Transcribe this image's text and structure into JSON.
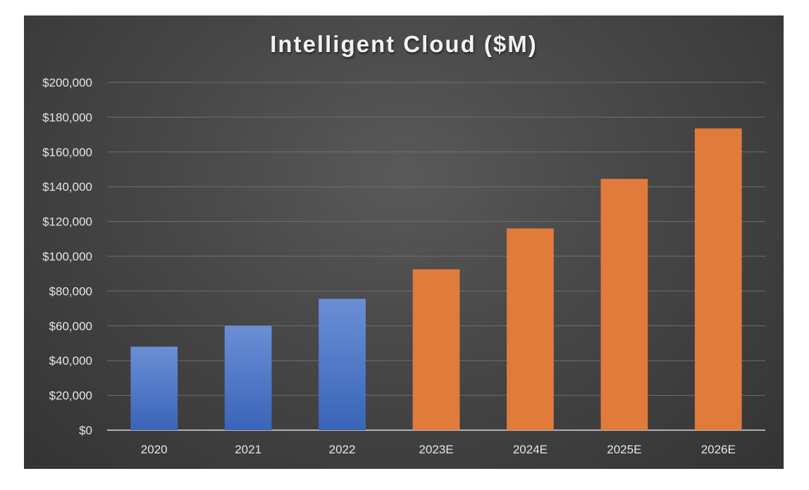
{
  "chart_data": {
    "type": "bar",
    "title": "Intelligent Cloud ($M)",
    "xlabel": "",
    "ylabel": "",
    "categories": [
      "2020",
      "2021",
      "2022",
      "2023E",
      "2024E",
      "2025E",
      "2026E"
    ],
    "values": [
      48000,
      60000,
      75500,
      92500,
      116000,
      144500,
      173500
    ],
    "kind": [
      "actual",
      "actual",
      "actual",
      "estimate",
      "estimate",
      "estimate",
      "estimate"
    ],
    "ylim": [
      0,
      200000
    ],
    "yticks": [
      0,
      20000,
      40000,
      60000,
      80000,
      100000,
      120000,
      140000,
      160000,
      180000,
      200000
    ],
    "ytick_labels": [
      "$0",
      "$20,000",
      "$40,000",
      "$60,000",
      "$80,000",
      "$100,000",
      "$120,000",
      "$140,000",
      "$160,000",
      "$180,000",
      "$200,000"
    ],
    "grid": true,
    "legend": "none"
  },
  "colors": {
    "actual": "#4472c4",
    "estimate": "#e07b3c",
    "gridline": "#6e6e6e",
    "axis": "#d9d9d9"
  }
}
